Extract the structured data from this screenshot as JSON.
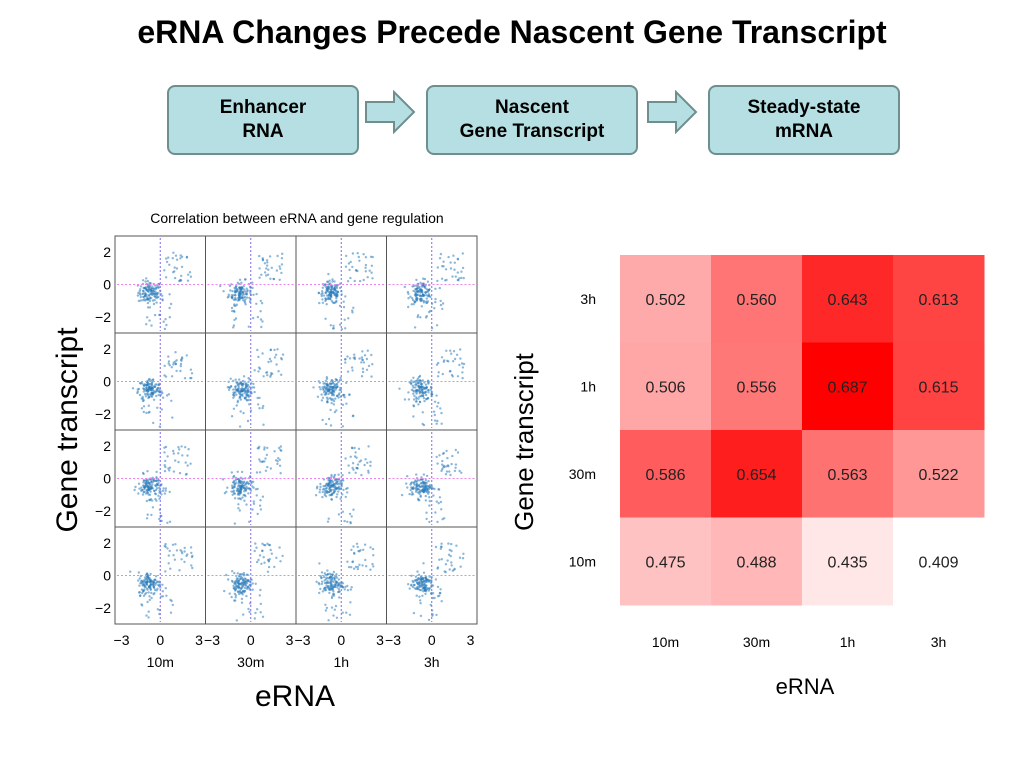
{
  "title": "eRNA Changes Precede Nascent Gene Transcript",
  "flow": {
    "box1": [
      "Enhancer",
      "RNA"
    ],
    "box2": [
      "Nascent",
      "Gene Transcript"
    ],
    "box3": [
      "Steady-state",
      "mRNA"
    ]
  },
  "colors": {
    "flow_fill": "#b5dfe2",
    "flow_border": "#6f8f8f",
    "scatter_point": "#2b7bba",
    "guide_vertical": "#7b68ee",
    "guide_horizontal": "#ee82ee",
    "heatmap_base": "#ff0000"
  },
  "chart_data": [
    {
      "type": "scatter",
      "title": "Correlation between eRNA and gene regulation",
      "xlabel": "eRNA",
      "ylabel": "Gene transcript",
      "columns": [
        "10m",
        "30m",
        "1h",
        "3h"
      ],
      "rows": [
        "3h",
        "1h",
        "30m",
        "10m"
      ],
      "x_ticks": [
        "−3",
        "0",
        "3"
      ],
      "y_ticks": [
        "2",
        "0",
        "−2"
      ],
      "xlim": [
        -3.5,
        3.5
      ],
      "ylim": [
        -3,
        3
      ],
      "guides": {
        "x": 0,
        "y": 0
      },
      "cluster_center": {
        "x": -0.8,
        "y": -0.5
      }
    },
    {
      "type": "heatmap",
      "xlabel": "eRNA",
      "ylabel": "Gene transcript",
      "x_categories": [
        "10m",
        "30m",
        "1h",
        "3h"
      ],
      "y_categories": [
        "3h",
        "1h",
        "30m",
        "10m"
      ],
      "values": [
        [
          "0.502",
          "0.560",
          "0.643",
          "0.613"
        ],
        [
          "0.506",
          "0.556",
          "0.687",
          "0.615"
        ],
        [
          "0.586",
          "0.654",
          "0.563",
          "0.522"
        ],
        [
          "0.475",
          "0.488",
          "0.435",
          "0.409"
        ]
      ],
      "color_range": [
        0.409,
        0.687
      ]
    }
  ]
}
